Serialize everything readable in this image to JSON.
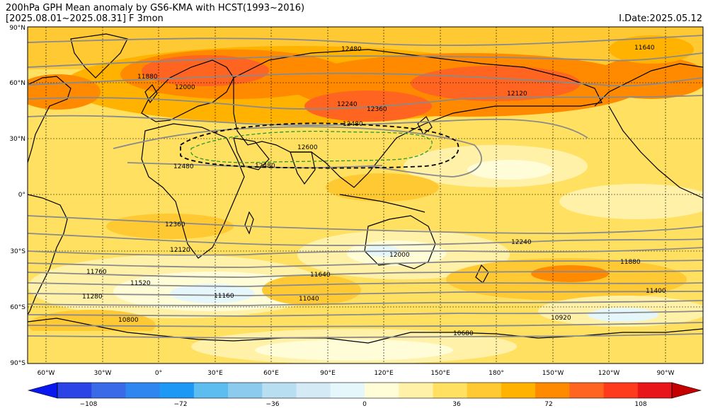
{
  "header": {
    "title": "200hPa GPH Mean anomaly by GS6-KMA with HCST(1993~2016)",
    "subtitle": "[2025.08.01~2025.08.31] F 3mon",
    "idate": "I.Date:2025.05.12"
  },
  "map": {
    "lat_labels": [
      "90°N",
      "60°N",
      "30°N",
      "0°",
      "30°S",
      "60°S",
      "90°S"
    ],
    "lon_labels": [
      "60°W",
      "30°W",
      "0°",
      "30°E",
      "60°E",
      "90°E",
      "120°E",
      "150°E",
      "180°",
      "150°W",
      "120°W",
      "90°W"
    ],
    "contour_labels": [
      {
        "text": "12600"
      },
      {
        "text": "12480"
      },
      {
        "text": "12480"
      },
      {
        "text": "12480"
      },
      {
        "text": "12360"
      },
      {
        "text": "12360"
      },
      {
        "text": "12240"
      },
      {
        "text": "12240"
      },
      {
        "text": "12120"
      },
      {
        "text": "12120"
      },
      {
        "text": "11880"
      },
      {
        "text": "11880"
      },
      {
        "text": "11760"
      },
      {
        "text": "11640"
      },
      {
        "text": "11640"
      },
      {
        "text": "11520"
      },
      {
        "text": "11400"
      },
      {
        "text": "11280"
      },
      {
        "text": "11160"
      },
      {
        "text": "11040"
      },
      {
        "text": "10920"
      },
      {
        "text": "10800"
      },
      {
        "text": "10680"
      },
      {
        "text": "12000"
      },
      {
        "text": "12000"
      },
      {
        "text": "12480"
      }
    ]
  },
  "colorbar": {
    "tick_labels": [
      "−108",
      "−72",
      "−36",
      "0",
      "36",
      "72",
      "108"
    ],
    "colors": [
      "#0a18f0",
      "#2a44e6",
      "#3a6ae8",
      "#2f86f0",
      "#1e98f5",
      "#5dbdf0",
      "#8ccbed",
      "#b8def2",
      "#d4ebf5",
      "#e6f7fc",
      "#fffdd8",
      "#fff1a8",
      "#ffe060",
      "#ffc933",
      "#ffb300",
      "#ff8a00",
      "#ff6420",
      "#ff3b1e",
      "#e8151a",
      "#c40000"
    ]
  }
}
